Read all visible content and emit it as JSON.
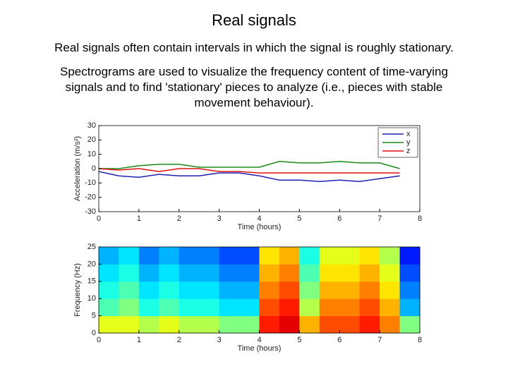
{
  "title": "Real signals",
  "paragraphs": [
    "Real signals often contain intervals in which the signal is roughly stationary.",
    "Spectrograms are used to visualize the frequency content of time-varying signals and to find 'stationary' pieces to analyze (i.e., pieces with stable movement behaviour)."
  ],
  "chart_data": [
    {
      "type": "line",
      "xlabel": "Time (hours)",
      "ylabel": "Acceleration (m/s²)",
      "xlim": [
        0,
        8
      ],
      "ylim": [
        -30,
        30
      ],
      "xticks": [
        0,
        1,
        2,
        3,
        4,
        5,
        6,
        7,
        8
      ],
      "yticks": [
        -30,
        -20,
        -10,
        0,
        10,
        20,
        30
      ],
      "legend": "upper right",
      "x": [
        0,
        0.5,
        1,
        1.5,
        2,
        2.5,
        3,
        3.5,
        4,
        4.5,
        5,
        5.5,
        6,
        6.5,
        7,
        7.5
      ],
      "series": [
        {
          "name": "x",
          "color": "#1f1fb4",
          "values": [
            -2,
            -5,
            -6,
            -4,
            -5,
            -5,
            -3,
            -3,
            -5,
            -8,
            -8,
            -9,
            -8,
            -9,
            -7,
            -5
          ]
        },
        {
          "name": "y",
          "color": "#1a8a1a",
          "values": [
            0,
            0,
            2,
            3,
            3,
            1,
            1,
            1,
            1,
            5,
            4,
            4,
            5,
            4,
            4,
            0
          ]
        },
        {
          "name": "z",
          "color": "#e01010",
          "values": [
            0,
            -1,
            0,
            -2,
            0,
            0,
            -2,
            -2,
            -3,
            -3,
            -3,
            -3,
            -3,
            -3,
            -3,
            -3
          ]
        }
      ]
    },
    {
      "type": "heatmap",
      "xlabel": "Time (hours)",
      "ylabel": "Frequency (Hz)",
      "xlim": [
        0,
        8
      ],
      "ylim": [
        0,
        25
      ],
      "xticks": [
        0,
        1,
        2,
        3,
        4,
        5,
        6,
        7,
        8
      ],
      "yticks": [
        0,
        5,
        10,
        15,
        20,
        25
      ],
      "xbins": [
        0,
        0.5,
        1,
        1.5,
        2,
        2.5,
        3,
        3.5,
        4,
        4.5,
        5,
        5.5,
        6,
        6.5,
        7,
        7.5,
        8
      ],
      "ybins": [
        0,
        5,
        10,
        15,
        20,
        25
      ],
      "values": [
        [
          0.6,
          0.6,
          0.55,
          0.6,
          0.55,
          0.55,
          0.5,
          0.5,
          0.85,
          0.9,
          0.7,
          0.8,
          0.8,
          0.85,
          0.75,
          0.5
        ],
        [
          0.45,
          0.5,
          0.4,
          0.45,
          0.4,
          0.4,
          0.35,
          0.35,
          0.8,
          0.85,
          0.55,
          0.75,
          0.75,
          0.8,
          0.7,
          0.3
        ],
        [
          0.4,
          0.45,
          0.35,
          0.4,
          0.35,
          0.35,
          0.3,
          0.3,
          0.75,
          0.8,
          0.5,
          0.7,
          0.7,
          0.75,
          0.65,
          0.25
        ],
        [
          0.35,
          0.4,
          0.3,
          0.35,
          0.3,
          0.3,
          0.25,
          0.25,
          0.7,
          0.75,
          0.45,
          0.65,
          0.65,
          0.7,
          0.6,
          0.2
        ],
        [
          0.3,
          0.35,
          0.25,
          0.3,
          0.25,
          0.25,
          0.2,
          0.2,
          0.65,
          0.7,
          0.4,
          0.6,
          0.6,
          0.65,
          0.55,
          0.15
        ]
      ]
    }
  ]
}
